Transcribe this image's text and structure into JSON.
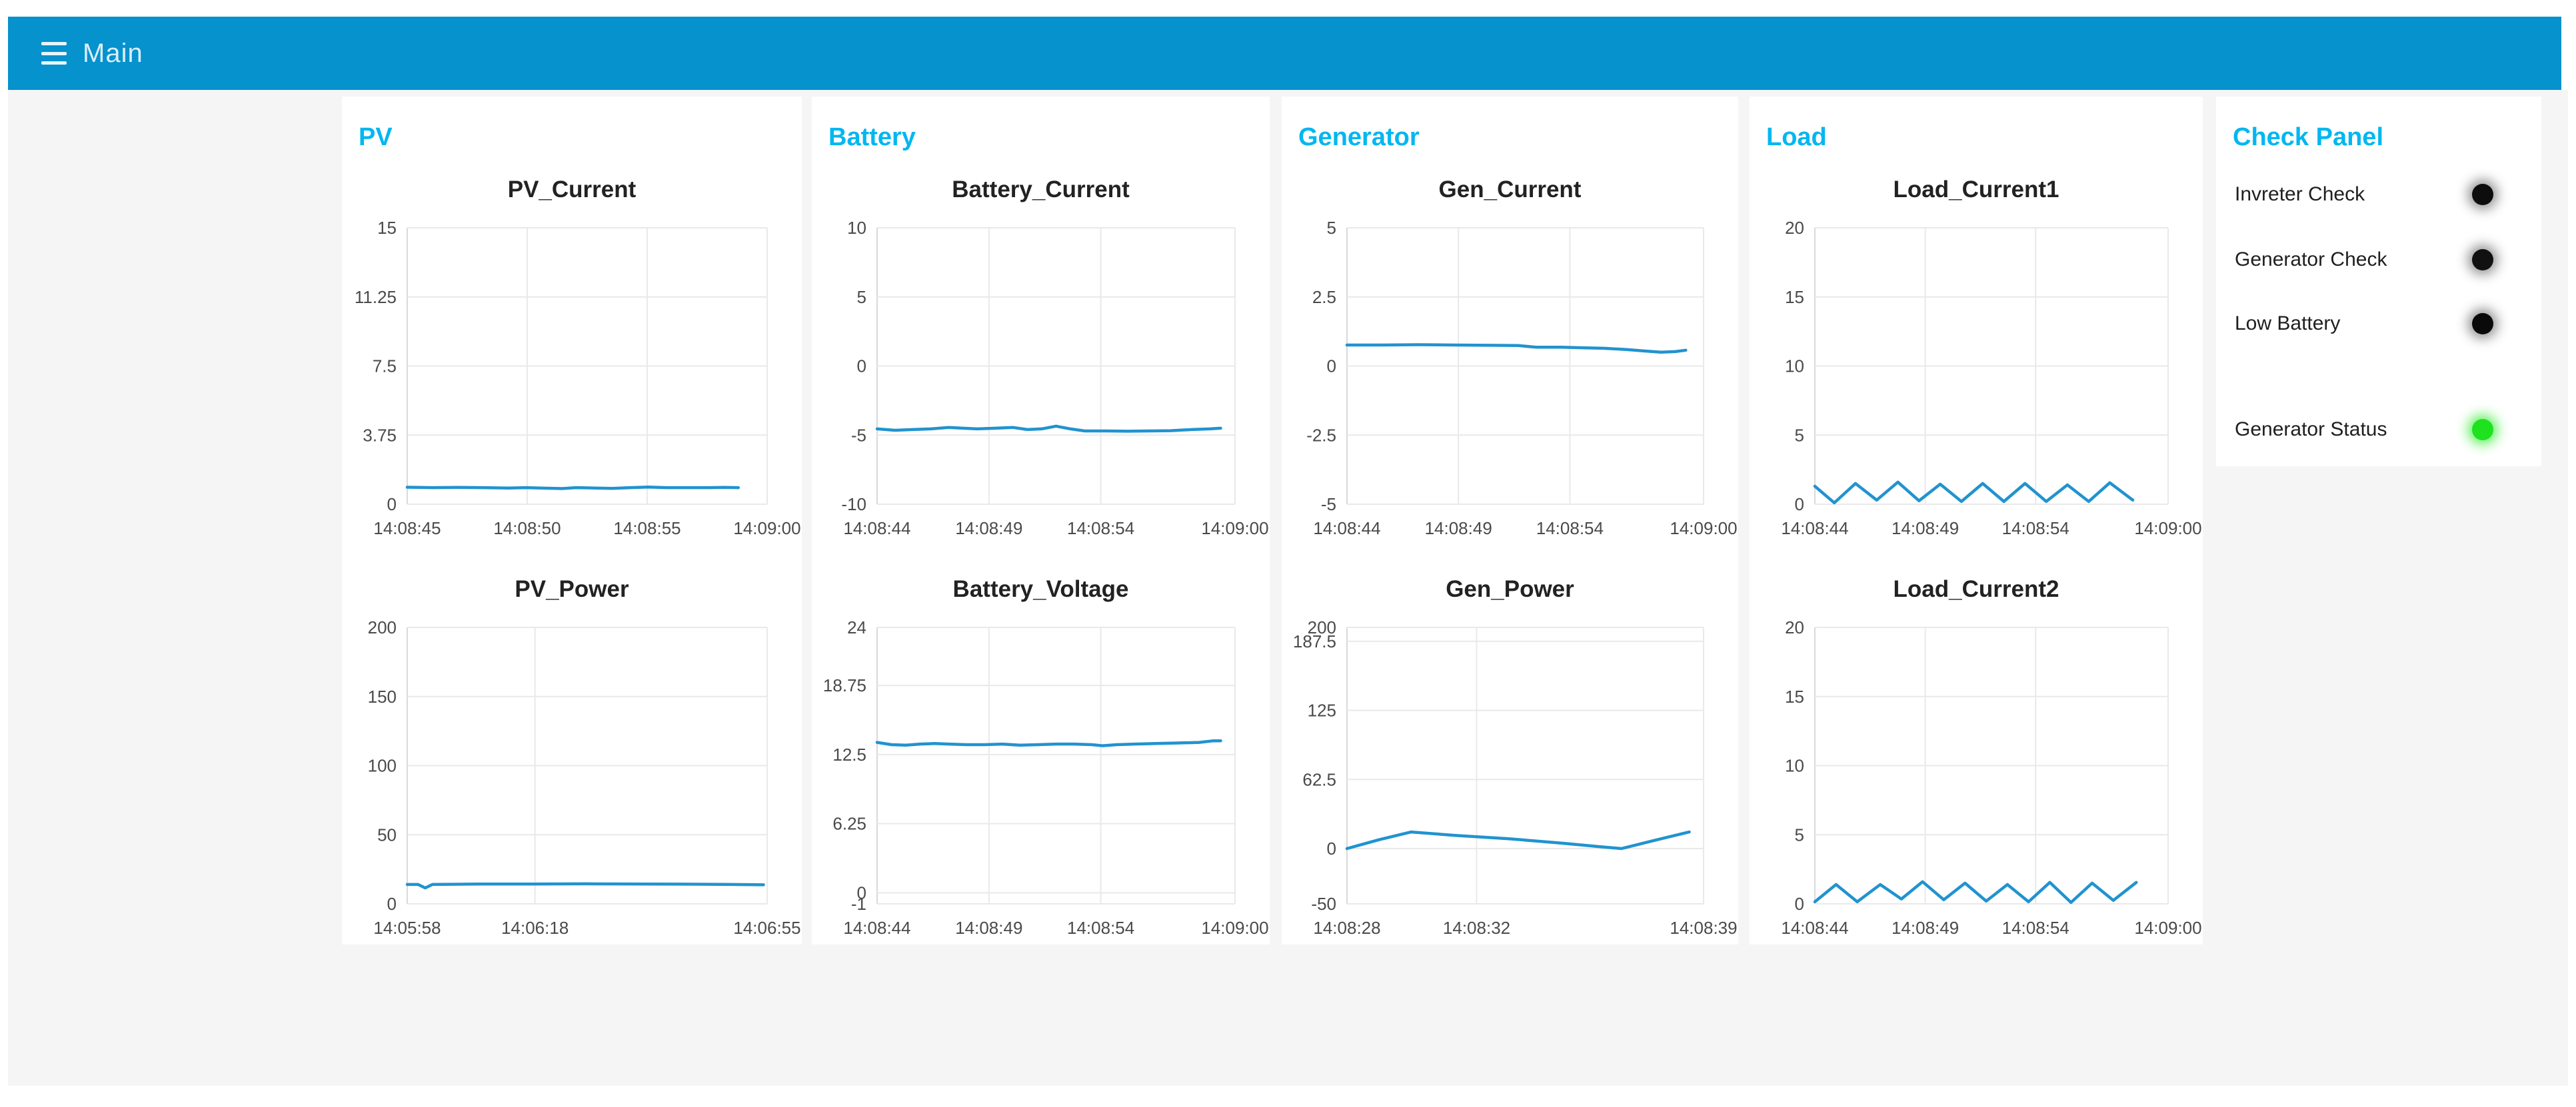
{
  "header": {
    "title": "Main"
  },
  "colors": {
    "header_bg": "#0592cd",
    "header_text": "#d9eefa",
    "menu_icon": "#e8f5fc",
    "accent": "#00b7f0",
    "content_bg": "#f5f5f6",
    "panel_bg": "#ffffff",
    "line": "#2193cf",
    "grid": "#e9e9e9",
    "axis": "#d9d9d9",
    "axis_text": "#4a4a4a",
    "chart_title": "#222222",
    "check_label": "#1f1f1f"
  },
  "groups": [
    {
      "label": "PV"
    },
    {
      "label": "Battery"
    },
    {
      "label": "Generator"
    },
    {
      "label": "Load"
    }
  ],
  "charts": {
    "pv_current": {
      "title": "PV_Current",
      "type": "line",
      "y_min": 0,
      "y_max": 15,
      "y_ticks": [
        [
          "15",
          15
        ],
        [
          "11.25",
          11.25
        ],
        [
          "7.5",
          7.5
        ],
        [
          "3.75",
          3.75
        ],
        [
          "0",
          0
        ]
      ],
      "x_ticks": [
        [
          "14:08:45",
          0
        ],
        [
          "14:08:50",
          0.3333
        ],
        [
          "14:08:55",
          0.6667
        ],
        [
          "14:09:00",
          1
        ]
      ],
      "points": [
        [
          0,
          0.92
        ],
        [
          0.07,
          0.9
        ],
        [
          0.14,
          0.91
        ],
        [
          0.21,
          0.9
        ],
        [
          0.28,
          0.88
        ],
        [
          0.33,
          0.9
        ],
        [
          0.38,
          0.87
        ],
        [
          0.43,
          0.85
        ],
        [
          0.47,
          0.9
        ],
        [
          0.52,
          0.88
        ],
        [
          0.57,
          0.86
        ],
        [
          0.62,
          0.9
        ],
        [
          0.67,
          0.93
        ],
        [
          0.72,
          0.9
        ],
        [
          0.78,
          0.9
        ],
        [
          0.84,
          0.9
        ],
        [
          0.88,
          0.91
        ],
        [
          0.92,
          0.9
        ]
      ]
    },
    "pv_power": {
      "title": "PV_Power",
      "type": "line",
      "y_min": 0,
      "y_max": 200,
      "y_ticks": [
        [
          "200",
          200
        ],
        [
          "150",
          150
        ],
        [
          "100",
          100
        ],
        [
          "50",
          50
        ],
        [
          "0",
          0
        ]
      ],
      "x_ticks": [
        [
          "14:05:58",
          0
        ],
        [
          "14:06:18",
          0.355
        ],
        [
          "14:06:55",
          1
        ]
      ],
      "points": [
        [
          0,
          14
        ],
        [
          0.03,
          14
        ],
        [
          0.05,
          11.5
        ],
        [
          0.07,
          14
        ],
        [
          0.2,
          14.3
        ],
        [
          0.35,
          14.3
        ],
        [
          0.5,
          14.5
        ],
        [
          0.65,
          14.3
        ],
        [
          0.8,
          14.2
        ],
        [
          0.9,
          14
        ],
        [
          0.99,
          13.8
        ]
      ]
    },
    "battery_current": {
      "title": "Battery_Current",
      "type": "line",
      "y_min": -10,
      "y_max": 10,
      "y_ticks": [
        [
          "10",
          10
        ],
        [
          "5",
          5
        ],
        [
          "0",
          0
        ],
        [
          "-5",
          -5
        ],
        [
          "-10",
          -10
        ]
      ],
      "x_ticks": [
        [
          "14:08:44",
          0
        ],
        [
          "14:08:49",
          0.3125
        ],
        [
          "14:08:54",
          0.625
        ],
        [
          "14:09:00",
          1
        ]
      ],
      "points": [
        [
          0,
          -4.55
        ],
        [
          0.05,
          -4.65
        ],
        [
          0.1,
          -4.6
        ],
        [
          0.15,
          -4.55
        ],
        [
          0.2,
          -4.45
        ],
        [
          0.24,
          -4.5
        ],
        [
          0.28,
          -4.55
        ],
        [
          0.33,
          -4.5
        ],
        [
          0.38,
          -4.45
        ],
        [
          0.42,
          -4.6
        ],
        [
          0.46,
          -4.55
        ],
        [
          0.5,
          -4.35
        ],
        [
          0.54,
          -4.55
        ],
        [
          0.58,
          -4.7
        ],
        [
          0.64,
          -4.7
        ],
        [
          0.7,
          -4.72
        ],
        [
          0.76,
          -4.7
        ],
        [
          0.82,
          -4.68
        ],
        [
          0.88,
          -4.6
        ],
        [
          0.93,
          -4.55
        ],
        [
          0.96,
          -4.5
        ]
      ]
    },
    "battery_voltage": {
      "title": "Battery_Voltage",
      "type": "line",
      "y_min": -1,
      "y_max": 24,
      "y_ticks": [
        [
          "24",
          24
        ],
        [
          "18.75",
          18.75
        ],
        [
          "12.5",
          12.5
        ],
        [
          "6.25",
          6.25
        ],
        [
          "0",
          0
        ],
        [
          "-1",
          -1
        ]
      ],
      "x_ticks": [
        [
          "14:08:44",
          0
        ],
        [
          "14:08:49",
          0.3125
        ],
        [
          "14:08:54",
          0.625
        ],
        [
          "14:09:00",
          1
        ]
      ],
      "points": [
        [
          0,
          13.6
        ],
        [
          0.04,
          13.4
        ],
        [
          0.08,
          13.35
        ],
        [
          0.12,
          13.45
        ],
        [
          0.16,
          13.5
        ],
        [
          0.2,
          13.45
        ],
        [
          0.25,
          13.4
        ],
        [
          0.3,
          13.4
        ],
        [
          0.35,
          13.45
        ],
        [
          0.4,
          13.35
        ],
        [
          0.45,
          13.4
        ],
        [
          0.5,
          13.45
        ],
        [
          0.55,
          13.45
        ],
        [
          0.6,
          13.4
        ],
        [
          0.63,
          13.3
        ],
        [
          0.67,
          13.4
        ],
        [
          0.72,
          13.45
        ],
        [
          0.78,
          13.5
        ],
        [
          0.84,
          13.55
        ],
        [
          0.9,
          13.6
        ],
        [
          0.94,
          13.75
        ],
        [
          0.96,
          13.75
        ]
      ]
    },
    "gen_current": {
      "title": "Gen_Current",
      "type": "line",
      "y_min": -5,
      "y_max": 5,
      "y_ticks": [
        [
          "5",
          5
        ],
        [
          "2.5",
          2.5
        ],
        [
          "0",
          0
        ],
        [
          "-2.5",
          -2.5
        ],
        [
          "-5",
          -5
        ]
      ],
      "x_ticks": [
        [
          "14:08:44",
          0
        ],
        [
          "14:08:49",
          0.3125
        ],
        [
          "14:08:54",
          0.625
        ],
        [
          "14:09:00",
          1
        ]
      ],
      "points": [
        [
          0,
          0.76
        ],
        [
          0.1,
          0.76
        ],
        [
          0.2,
          0.77
        ],
        [
          0.3,
          0.76
        ],
        [
          0.4,
          0.75
        ],
        [
          0.48,
          0.74
        ],
        [
          0.53,
          0.68
        ],
        [
          0.6,
          0.68
        ],
        [
          0.66,
          0.66
        ],
        [
          0.72,
          0.64
        ],
        [
          0.78,
          0.6
        ],
        [
          0.83,
          0.55
        ],
        [
          0.88,
          0.5
        ],
        [
          0.92,
          0.52
        ],
        [
          0.95,
          0.57
        ]
      ]
    },
    "gen_power": {
      "title": "Gen_Power",
      "type": "line",
      "y_min": -50,
      "y_max": 200,
      "y_ticks": [
        [
          "200",
          200
        ],
        [
          "187.5",
          187.5
        ],
        [
          "125",
          125
        ],
        [
          "62.5",
          62.5
        ],
        [
          "0",
          0
        ],
        [
          "-50",
          -50
        ]
      ],
      "x_ticks": [
        [
          "14:08:28",
          0
        ],
        [
          "14:08:32",
          0.3636
        ],
        [
          "14:08:39",
          1
        ]
      ],
      "points": [
        [
          0,
          0
        ],
        [
          0.09,
          8
        ],
        [
          0.18,
          15
        ],
        [
          0.3,
          12
        ],
        [
          0.45,
          9
        ],
        [
          0.6,
          5
        ],
        [
          0.7,
          2
        ],
        [
          0.77,
          0
        ],
        [
          0.87,
          8
        ],
        [
          0.96,
          15
        ]
      ]
    },
    "load_current1": {
      "title": "Load_Current1",
      "type": "line",
      "y_min": 0,
      "y_max": 20,
      "y_ticks": [
        [
          "20",
          20
        ],
        [
          "15",
          15
        ],
        [
          "10",
          10
        ],
        [
          "5",
          5
        ],
        [
          "0",
          0
        ]
      ],
      "x_ticks": [
        [
          "14:08:44",
          0
        ],
        [
          "14:08:49",
          0.3125
        ],
        [
          "14:08:54",
          0.625
        ],
        [
          "14:09:00",
          1
        ]
      ],
      "points": [
        [
          0,
          1.3
        ],
        [
          0.055,
          0.1
        ],
        [
          0.115,
          1.5
        ],
        [
          0.175,
          0.3
        ],
        [
          0.235,
          1.6
        ],
        [
          0.295,
          0.25
        ],
        [
          0.355,
          1.45
        ],
        [
          0.415,
          0.2
        ],
        [
          0.475,
          1.5
        ],
        [
          0.535,
          0.2
        ],
        [
          0.595,
          1.5
        ],
        [
          0.655,
          0.2
        ],
        [
          0.715,
          1.4
        ],
        [
          0.775,
          0.2
        ],
        [
          0.835,
          1.55
        ],
        [
          0.9,
          0.3
        ]
      ]
    },
    "load_current2": {
      "title": "Load_Current2",
      "type": "line",
      "y_min": 0,
      "y_max": 20,
      "y_ticks": [
        [
          "20",
          20
        ],
        [
          "15",
          15
        ],
        [
          "10",
          10
        ],
        [
          "5",
          5
        ],
        [
          "0",
          0
        ]
      ],
      "x_ticks": [
        [
          "14:08:44",
          0
        ],
        [
          "14:08:49",
          0.3125
        ],
        [
          "14:08:54",
          0.625
        ],
        [
          "14:09:00",
          1
        ]
      ],
      "points": [
        [
          0,
          0.15
        ],
        [
          0.06,
          1.4
        ],
        [
          0.12,
          0.15
        ],
        [
          0.185,
          1.4
        ],
        [
          0.245,
          0.35
        ],
        [
          0.305,
          1.6
        ],
        [
          0.365,
          0.3
        ],
        [
          0.425,
          1.5
        ],
        [
          0.485,
          0.2
        ],
        [
          0.545,
          1.4
        ],
        [
          0.605,
          0.15
        ],
        [
          0.665,
          1.55
        ],
        [
          0.725,
          0.1
        ],
        [
          0.785,
          1.5
        ],
        [
          0.845,
          0.25
        ],
        [
          0.91,
          1.55
        ]
      ]
    }
  },
  "check_panel": {
    "label": "Check Panel",
    "items": [
      {
        "label": "Invreter Check",
        "status": "off",
        "led": "#0d0d0d",
        "glow": "rgba(0,0,0,0.45)"
      },
      {
        "label": "Generator Check",
        "status": "off",
        "led": "#111111",
        "glow": "rgba(0,0,0,0.45)"
      },
      {
        "label": "Low Battery",
        "status": "off",
        "led": "#0a0a0a",
        "glow": "rgba(0,0,0,0.45)"
      },
      {
        "label": "Generator Status",
        "status": "on",
        "led": "#1de21d",
        "glow": "rgba(35,235,35,0.75)"
      }
    ]
  }
}
